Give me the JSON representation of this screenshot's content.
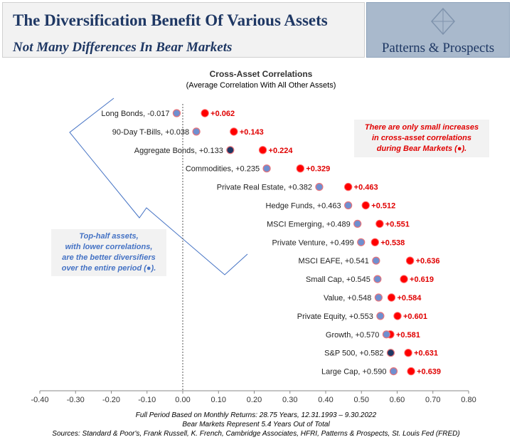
{
  "header": {
    "title": "The Diversification Benefit Of Various Assets",
    "subtitle": "Not Many Differences In Bear Markets",
    "brand": "Patterns & Prospects"
  },
  "notes": {
    "right_lines": [
      "There are only small increases",
      "in cross-asset correlations",
      "during Bear Markets (●)."
    ],
    "left_lines": [
      "Top-half assets,",
      "with lower correlations,",
      "are the better diversifiers",
      "over the entire period (●)."
    ]
  },
  "captions": {
    "line1": "Full Period Based on Monthly Returns: 28.75 Years, 12.31.1993 – 9.30.2022",
    "line2": "Bear Markets Represent 5.4 Years Out of Total",
    "line3": "Sources: Standard & Poor's, Frank Russell, K. French, Cambridge Associates, HFRI, Patterns & Prospects, St. Louis Fed (FRED)"
  },
  "colors": {
    "title_navy": "#1f3864",
    "full_period_marker": "#6f8fd0",
    "full_period_outline": "#e8737a",
    "highlight_marker": "#1f3864",
    "bear_marker": "#ff0000",
    "bear_label": "#e00000",
    "note_blue": "#4472c4",
    "logo_bg": "#a9b9cc"
  },
  "chart_data": {
    "type": "scatter",
    "title": "Cross-Asset Correlations",
    "subtitle": "(Average Correlation With All Other Assets)",
    "xlim": [
      -0.4,
      0.8
    ],
    "x_ticks": [
      "-0.40",
      "-0.30",
      "-0.20",
      "-0.10",
      "0.00",
      "0.10",
      "0.20",
      "0.30",
      "0.40",
      "0.50",
      "0.60",
      "0.70",
      "0.80"
    ],
    "grid": false,
    "series": [
      {
        "name": "Full Period",
        "marker": "circle"
      },
      {
        "name": "Bear Markets",
        "marker": "circle"
      }
    ],
    "assets": [
      {
        "label": "Long Bonds, -0.017",
        "full": -0.017,
        "bear": 0.062,
        "bear_label": "+0.062",
        "highlight": false
      },
      {
        "label": "90-Day T-Bills, +0.038",
        "full": 0.038,
        "bear": 0.143,
        "bear_label": "+0.143",
        "highlight": false
      },
      {
        "label": "Aggregate Bonds, +0.133",
        "full": 0.133,
        "bear": 0.224,
        "bear_label": "+0.224",
        "highlight": true
      },
      {
        "label": "Commodities, +0.235",
        "full": 0.235,
        "bear": 0.329,
        "bear_label": "+0.329",
        "highlight": false
      },
      {
        "label": "Private Real Estate, +0.382",
        "full": 0.382,
        "bear": 0.463,
        "bear_label": "+0.463",
        "highlight": false
      },
      {
        "label": "Hedge Funds, +0.463",
        "full": 0.463,
        "bear": 0.512,
        "bear_label": "+0.512",
        "highlight": false
      },
      {
        "label": "MSCI Emerging, +0.489",
        "full": 0.489,
        "bear": 0.551,
        "bear_label": "+0.551",
        "highlight": false
      },
      {
        "label": "Private Venture, +0.499",
        "full": 0.499,
        "bear": 0.538,
        "bear_label": "+0.538",
        "highlight": false
      },
      {
        "label": "MSCI EAFE, +0.541",
        "full": 0.541,
        "bear": 0.636,
        "bear_label": "+0.636",
        "highlight": false
      },
      {
        "label": "Small Cap, +0.545",
        "full": 0.545,
        "bear": 0.619,
        "bear_label": "+0.619",
        "highlight": false
      },
      {
        "label": "Value, +0.548",
        "full": 0.548,
        "bear": 0.584,
        "bear_label": "+0.584",
        "highlight": false
      },
      {
        "label": "Private Equity, +0.553",
        "full": 0.553,
        "bear": 0.601,
        "bear_label": "+0.601",
        "highlight": false
      },
      {
        "label": "Growth, +0.570",
        "full": 0.57,
        "bear": 0.581,
        "bear_label": "+0.581",
        "highlight": false
      },
      {
        "label": "S&P 500, +0.582",
        "full": 0.582,
        "bear": 0.631,
        "bear_label": "+0.631",
        "highlight": true
      },
      {
        "label": "Large Cap, +0.590",
        "full": 0.59,
        "bear": 0.639,
        "bear_label": "+0.639",
        "highlight": false
      }
    ]
  }
}
